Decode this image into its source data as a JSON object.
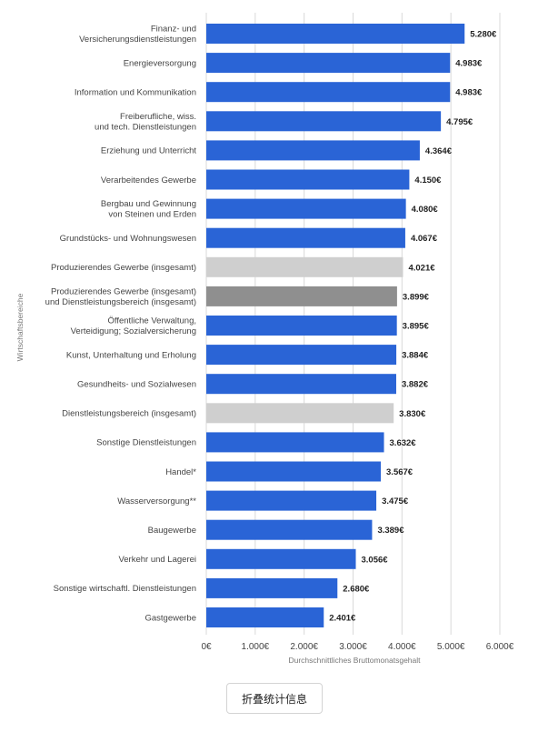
{
  "chart_data": {
    "type": "bar",
    "orientation": "horizontal",
    "ylabel": "Wirtschaftsbereiche",
    "xlabel": "Durchschnittliches Bruttomonatsgehalt",
    "xlim": [
      0,
      6000
    ],
    "xticks": [
      0,
      1000,
      2000,
      3000,
      4000,
      5000,
      6000
    ],
    "xtick_labels": [
      "0€",
      "1.000€",
      "2.000€",
      "3.000€",
      "4.000€",
      "5.000€",
      "6.000€"
    ],
    "grid": true,
    "colors": {
      "default": "#2a64d6",
      "light_gray": "#cfcfcf",
      "dark_gray": "#8f8f8f"
    },
    "categories": [
      {
        "label": [
          "Finanz- und",
          "Versicherungsdienstleistungen"
        ],
        "value": 5280,
        "value_label": "5.280€",
        "color": "default"
      },
      {
        "label": [
          "Energieversorgung"
        ],
        "value": 4983,
        "value_label": "4.983€",
        "color": "default"
      },
      {
        "label": [
          "Information und Kommunikation"
        ],
        "value": 4983,
        "value_label": "4.983€",
        "color": "default"
      },
      {
        "label": [
          "Freiberufliche, wiss.",
          "und tech. Dienstleistungen"
        ],
        "value": 4795,
        "value_label": "4.795€",
        "color": "default"
      },
      {
        "label": [
          "Erziehung und Unterricht"
        ],
        "value": 4364,
        "value_label": "4.364€",
        "color": "default"
      },
      {
        "label": [
          "Verarbeitendes Gewerbe"
        ],
        "value": 4150,
        "value_label": "4.150€",
        "color": "default"
      },
      {
        "label": [
          "Bergbau und Gewinnung",
          "von Steinen und Erden"
        ],
        "value": 4080,
        "value_label": "4.080€",
        "color": "default"
      },
      {
        "label": [
          "Grundstücks- und Wohnungswesen"
        ],
        "value": 4067,
        "value_label": "4.067€",
        "color": "default"
      },
      {
        "label": [
          "Produzierendes Gewerbe (insgesamt)"
        ],
        "value": 4021,
        "value_label": "4.021€",
        "color": "light_gray"
      },
      {
        "label": [
          "Produzierendes Gewerbe (insgesamt)",
          "und Dienstleistungsbereich (insgesamt)"
        ],
        "value": 3899,
        "value_label": "3.899€",
        "color": "dark_gray"
      },
      {
        "label": [
          "Öffentliche Verwaltung,",
          "Verteidigung; Sozialversicherung"
        ],
        "value": 3895,
        "value_label": "3.895€",
        "color": "default"
      },
      {
        "label": [
          "Kunst, Unterhaltung und Erholung"
        ],
        "value": 3884,
        "value_label": "3.884€",
        "color": "default"
      },
      {
        "label": [
          "Gesundheits- und Sozialwesen"
        ],
        "value": 3882,
        "value_label": "3.882€",
        "color": "default"
      },
      {
        "label": [
          "Dienstleistungsbereich (insgesamt)"
        ],
        "value": 3830,
        "value_label": "3.830€",
        "color": "light_gray"
      },
      {
        "label": [
          "Sonstige Dienstleistungen"
        ],
        "value": 3632,
        "value_label": "3.632€",
        "color": "default"
      },
      {
        "label": [
          "Handel*"
        ],
        "value": 3567,
        "value_label": "3.567€",
        "color": "default"
      },
      {
        "label": [
          "Wasserversorgung**"
        ],
        "value": 3475,
        "value_label": "3.475€",
        "color": "default"
      },
      {
        "label": [
          "Baugewerbe"
        ],
        "value": 3389,
        "value_label": "3.389€",
        "color": "default"
      },
      {
        "label": [
          "Verkehr und Lagerei"
        ],
        "value": 3056,
        "value_label": "3.056€",
        "color": "default"
      },
      {
        "label": [
          "Sonstige wirtschaftl. Dienstleistungen"
        ],
        "value": 2680,
        "value_label": "2.680€",
        "color": "default"
      },
      {
        "label": [
          "Gastgewerbe"
        ],
        "value": 2401,
        "value_label": "2.401€",
        "color": "default"
      }
    ]
  },
  "footer": {
    "collapse_label": "折叠统计信息"
  }
}
